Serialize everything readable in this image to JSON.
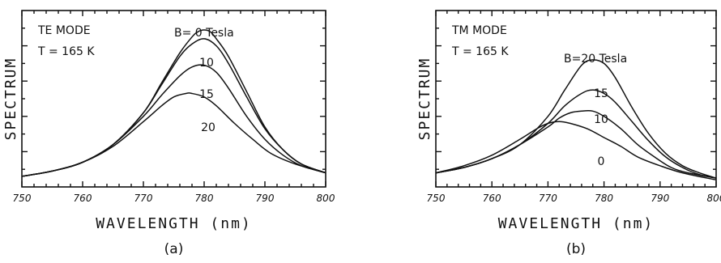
{
  "chart_data": [
    {
      "type": "line",
      "panel_label": "(a)",
      "xlabel": "WAVELENGTH (nm)",
      "ylabel": "SPECTRUM",
      "xlim": [
        750,
        800
      ],
      "ylim": [
        0,
        1
      ],
      "x_ticks": [
        "750",
        "760",
        "770",
        "780",
        "790",
        "800"
      ],
      "y_tick_labels": false,
      "annotations": [
        "TE MODE",
        "T = 165 K"
      ],
      "series": [
        {
          "name": "B= 0 Tesla",
          "label_text": "B= 0 Tesla",
          "x": [
            750,
            755,
            760,
            765,
            770,
            773,
            776,
            778,
            779,
            780,
            781,
            782,
            784,
            787,
            790,
            793,
            796,
            800
          ],
          "y": [
            0.06,
            0.09,
            0.14,
            0.24,
            0.42,
            0.59,
            0.76,
            0.85,
            0.88,
            0.89,
            0.88,
            0.84,
            0.74,
            0.54,
            0.34,
            0.21,
            0.13,
            0.08
          ]
        },
        {
          "name": "10",
          "label_text": "10",
          "x": [
            750,
            755,
            760,
            765,
            770,
            773,
            776,
            778,
            780,
            782,
            784,
            787,
            790,
            793,
            796,
            800
          ],
          "y": [
            0.06,
            0.09,
            0.14,
            0.24,
            0.42,
            0.58,
            0.74,
            0.81,
            0.84,
            0.8,
            0.7,
            0.51,
            0.33,
            0.21,
            0.13,
            0.08
          ]
        },
        {
          "name": "15",
          "label_text": "15",
          "x": [
            750,
            755,
            760,
            765,
            770,
            773,
            776,
            778,
            780,
            782,
            784,
            787,
            790,
            793,
            796,
            800
          ],
          "y": [
            0.06,
            0.09,
            0.14,
            0.24,
            0.4,
            0.52,
            0.63,
            0.68,
            0.69,
            0.65,
            0.56,
            0.4,
            0.27,
            0.18,
            0.12,
            0.08
          ]
        },
        {
          "name": "20",
          "label_text": "20",
          "x": [
            750,
            755,
            760,
            765,
            770,
            773,
            775,
            777,
            778,
            780,
            782,
            785,
            788,
            791,
            795,
            800
          ],
          "y": [
            0.06,
            0.09,
            0.14,
            0.23,
            0.37,
            0.46,
            0.51,
            0.53,
            0.53,
            0.51,
            0.46,
            0.36,
            0.27,
            0.19,
            0.13,
            0.08
          ]
        }
      ]
    },
    {
      "type": "line",
      "panel_label": "(b)",
      "xlabel": "WAVELENGTH (nm)",
      "ylabel": "SPECTRUM",
      "xlim": [
        750,
        800
      ],
      "ylim": [
        0,
        1
      ],
      "x_ticks": [
        "750",
        "760",
        "770",
        "780",
        "790",
        "800"
      ],
      "y_tick_labels": false,
      "annotations": [
        "TM MODE",
        "T = 165 K"
      ],
      "series": [
        {
          "name": "B=20 Tesla",
          "label_text": "B=20 Tesla",
          "x": [
            750,
            755,
            760,
            765,
            770,
            773,
            776,
            778,
            780,
            782,
            785,
            788,
            791,
            794,
            797,
            800
          ],
          "y": [
            0.08,
            0.11,
            0.16,
            0.24,
            0.4,
            0.55,
            0.69,
            0.72,
            0.7,
            0.62,
            0.45,
            0.3,
            0.19,
            0.12,
            0.08,
            0.05
          ]
        },
        {
          "name": "15",
          "label_text": "15",
          "x": [
            750,
            755,
            760,
            765,
            770,
            773,
            776,
            778,
            780,
            782,
            785,
            788,
            791,
            794,
            797,
            800
          ],
          "y": [
            0.08,
            0.11,
            0.16,
            0.24,
            0.36,
            0.46,
            0.53,
            0.55,
            0.53,
            0.48,
            0.37,
            0.26,
            0.17,
            0.11,
            0.07,
            0.05
          ]
        },
        {
          "name": "10",
          "label_text": "10",
          "x": [
            750,
            755,
            760,
            765,
            770,
            772,
            774,
            776,
            778,
            780,
            783,
            786,
            789,
            792,
            795,
            800
          ],
          "y": [
            0.08,
            0.11,
            0.16,
            0.24,
            0.34,
            0.39,
            0.42,
            0.43,
            0.43,
            0.4,
            0.33,
            0.24,
            0.17,
            0.11,
            0.08,
            0.05
          ]
        },
        {
          "name": "0",
          "label_text": "0",
          "x": [
            750,
            755,
            760,
            765,
            768,
            770,
            772,
            774,
            777,
            780,
            783,
            786,
            790,
            794,
            800
          ],
          "y": [
            0.08,
            0.12,
            0.18,
            0.27,
            0.33,
            0.36,
            0.37,
            0.36,
            0.33,
            0.28,
            0.23,
            0.17,
            0.12,
            0.08,
            0.04
          ]
        }
      ]
    }
  ]
}
